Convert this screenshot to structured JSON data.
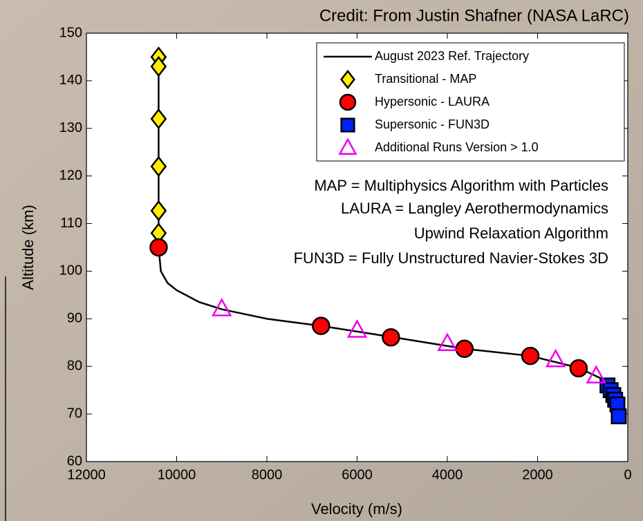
{
  "chart_data": {
    "type": "line",
    "credit": "Credit: From Justin Shafner (NASA LaRC)",
    "xlabel": "Velocity (m/s)",
    "ylabel": "Altitude (km)",
    "xlim": [
      12000,
      0
    ],
    "ylim": [
      60,
      150
    ],
    "xticks": [
      12000,
      10000,
      8000,
      6000,
      4000,
      2000,
      0
    ],
    "yticks": [
      60,
      70,
      80,
      90,
      100,
      110,
      120,
      130,
      140,
      150
    ],
    "legend": "upper right",
    "annotations": [
      "MAP = Multiphysics Algorithm with Particles",
      "LAURA = Langley Aerothermodynamics",
      "Upwind Relaxation Algorithm",
      "FUN3D = Fully Unstructured Navier-Stokes 3D"
    ],
    "series": [
      {
        "name": "August 2023 Ref. Trajectory",
        "type": "line",
        "color": "#000000",
        "x": [
          10400,
          10400,
          10350,
          10200,
          10000,
          9500,
          9000,
          8000,
          6800,
          5250,
          3620,
          2160,
          1090,
          600,
          350,
          250,
          200
        ],
        "values": [
          145,
          105,
          100,
          97.5,
          96,
          93.5,
          92,
          90,
          88.5,
          86.2,
          83.7,
          82.2,
          79.7,
          77.5,
          75.5,
          73,
          69.5
        ]
      },
      {
        "name": "Transitional - MAP",
        "type": "scatter",
        "marker": "diamond",
        "color": "#ffee00",
        "x": [
          10400,
          10400,
          10400,
          10400,
          10400,
          10400
        ],
        "values": [
          145,
          143,
          132,
          122,
          112.7,
          108
        ]
      },
      {
        "name": "Hypersonic - LAURA",
        "type": "scatter",
        "marker": "circle",
        "color": "#ff0000",
        "x": [
          10400,
          6800,
          5250,
          3620,
          2160,
          1090
        ],
        "values": [
          105,
          88.5,
          86.1,
          83.7,
          82.2,
          79.6
        ]
      },
      {
        "name": "Supersonic - FUN3D",
        "type": "scatter",
        "marker": "square",
        "color": "#0022ff",
        "x": [
          450,
          380,
          320,
          280,
          230,
          200
        ],
        "values": [
          76,
          75,
          74,
          73,
          72,
          69.5
        ]
      },
      {
        "name": "Additional Runs Version > 1.0",
        "type": "scatter",
        "marker": "triangle",
        "color": "#ee00ee",
        "x": [
          9000,
          6000,
          4000,
          1600,
          700
        ],
        "values": [
          92.1,
          87.6,
          84.8,
          81.4,
          78
        ]
      }
    ]
  }
}
